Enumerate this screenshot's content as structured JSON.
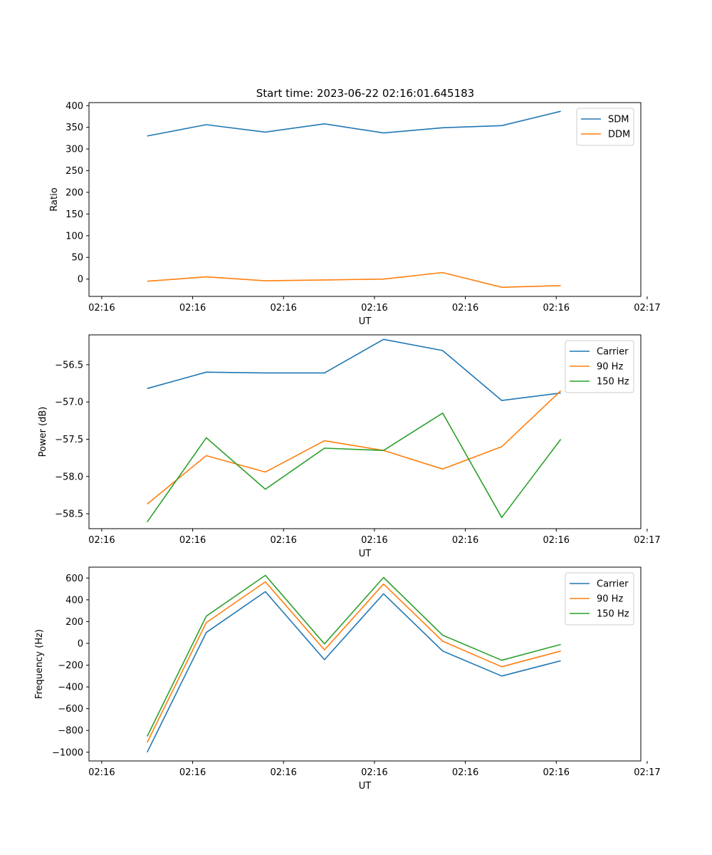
{
  "figure": {
    "title": "Start time: 2023-06-22 02:16:01.645183"
  },
  "x_tick_labels": [
    "02:16",
    "02:16",
    "02:16",
    "02:16",
    "02:16",
    "02:16",
    "02:17"
  ],
  "x_point_positions": [
    0.5,
    1.15,
    1.8,
    2.45,
    3.1,
    3.75,
    4.4,
    5.05
  ],
  "chart_data": [
    {
      "type": "line",
      "title": "Start time: 2023-06-22 02:16:01.645183",
      "xlabel": "UT",
      "ylabel": "Ratio",
      "xlim": [
        -0.14,
        5.93
      ],
      "ylim": [
        -40,
        407
      ],
      "yticks": [
        0,
        50,
        100,
        150,
        200,
        250,
        300,
        350,
        400
      ],
      "grid": false,
      "legend": "top-right",
      "series": [
        {
          "name": "SDM",
          "color": "#1f77b4",
          "values": [
            330,
            356,
            339,
            358,
            337,
            349,
            354,
            387
          ]
        },
        {
          "name": "DDM",
          "color": "#ff7f0e",
          "values": [
            -5,
            5,
            -4,
            -2,
            0,
            15,
            -19,
            -15
          ]
        }
      ]
    },
    {
      "type": "line",
      "xlabel": "UT",
      "ylabel": "Power (dB)",
      "xlim": [
        -0.14,
        5.93
      ],
      "ylim": [
        -58.7,
        -56.1
      ],
      "yticks": [
        -58.5,
        -58.0,
        -57.5,
        -57.0,
        -56.5
      ],
      "ytick_labels": [
        "−58.5",
        "−58.0",
        "−57.5",
        "−57.0",
        "−56.5"
      ],
      "grid": false,
      "legend": "top-right",
      "series": [
        {
          "name": "Carrier",
          "color": "#1f77b4",
          "values": [
            -56.82,
            -56.6,
            -56.61,
            -56.61,
            -56.16,
            -56.31,
            -56.98,
            -56.88
          ]
        },
        {
          "name": "90 Hz",
          "color": "#ff7f0e",
          "values": [
            -58.37,
            -57.72,
            -57.94,
            -57.52,
            -57.65,
            -57.9,
            -57.6,
            -56.85
          ]
        },
        {
          "name": "150 Hz",
          "color": "#2ca02c",
          "values": [
            -58.61,
            -57.48,
            -58.17,
            -57.62,
            -57.65,
            -57.15,
            -58.55,
            -57.5
          ]
        }
      ]
    },
    {
      "type": "line",
      "xlabel": "UT",
      "ylabel": "Frequency (Hz)",
      "xlim": [
        -0.14,
        5.93
      ],
      "ylim": [
        -1080,
        700
      ],
      "yticks": [
        -1000,
        -800,
        -600,
        -400,
        -200,
        0,
        200,
        400,
        600
      ],
      "ytick_labels": [
        "−1000",
        "−800",
        "−600",
        "−400",
        "−200",
        "0",
        "200",
        "400",
        "600"
      ],
      "grid": false,
      "legend": "top-right",
      "series": [
        {
          "name": "Carrier",
          "color": "#1f77b4",
          "values": [
            -1000,
            100,
            475,
            -150,
            455,
            -70,
            -300,
            -160
          ]
        },
        {
          "name": "90 Hz",
          "color": "#ff7f0e",
          "values": [
            -910,
            190,
            565,
            -60,
            545,
            20,
            -215,
            -70
          ]
        },
        {
          "name": "150 Hz",
          "color": "#2ca02c",
          "values": [
            -855,
            250,
            625,
            -5,
            605,
            75,
            -155,
            -10
          ]
        }
      ]
    }
  ]
}
